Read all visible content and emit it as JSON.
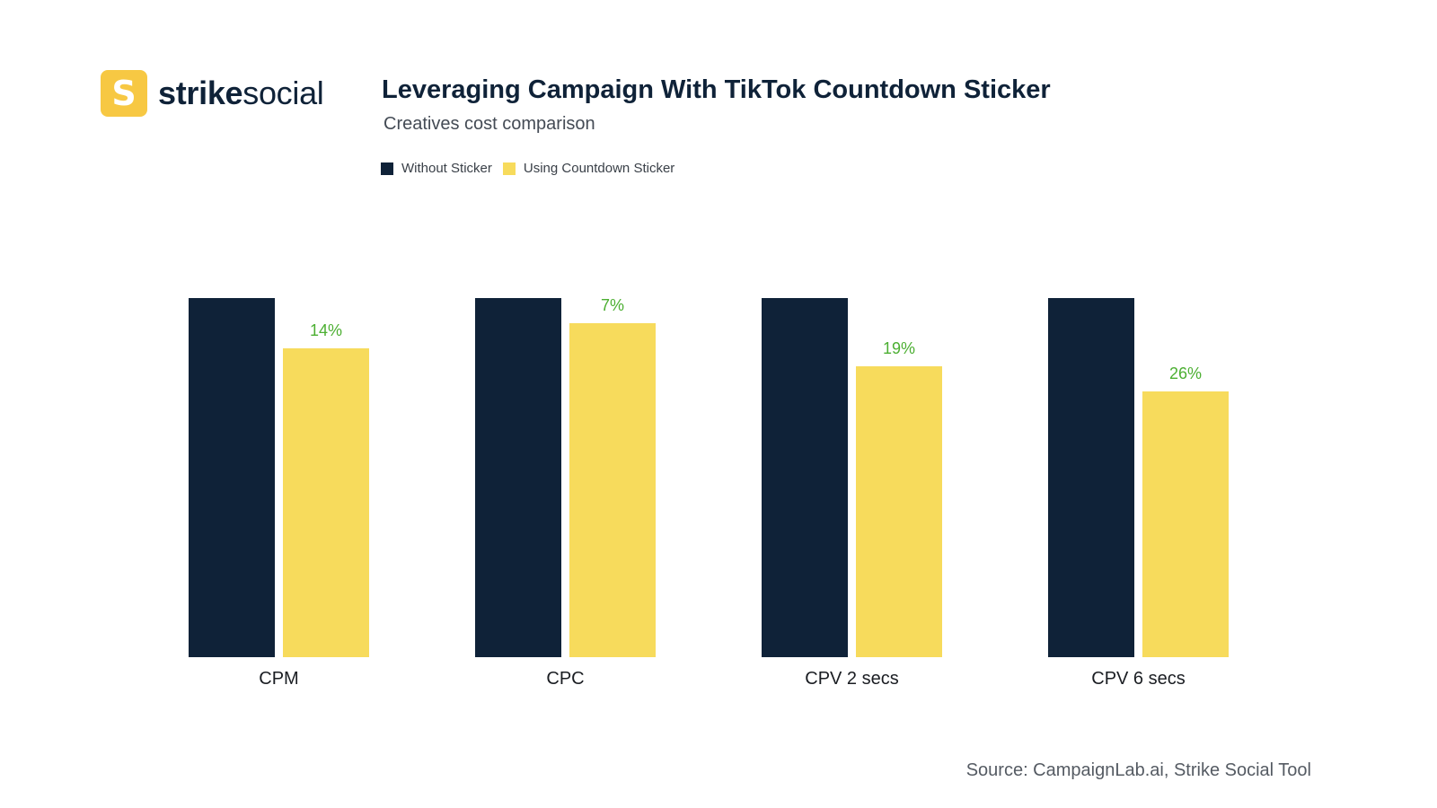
{
  "brand": {
    "badge_glyph": "S",
    "name_bold": "strike",
    "name_light": "social",
    "accent": "#f7c843"
  },
  "colors": {
    "without": "#0f2238",
    "with": "#f7db5c",
    "pct_label": "#4caf32"
  },
  "chart_data": {
    "type": "bar",
    "title": "Leveraging Campaign With TikTok Countdown Sticker",
    "subtitle": "Creatives cost comparison",
    "categories": [
      "CPM",
      "CPC",
      "CPV 2 secs",
      "CPV 6 secs"
    ],
    "series": [
      {
        "name": "Without Sticker",
        "values": [
          100,
          100,
          100,
          100
        ]
      },
      {
        "name": "Using Countdown Sticker",
        "values": [
          86,
          93,
          81,
          74
        ]
      }
    ],
    "data_labels": [
      "14%",
      "7%",
      "19%",
      "26%"
    ],
    "ylim": [
      0,
      100
    ],
    "grid": false,
    "legend": "top-left"
  },
  "source": "Source: CampaignLab.ai, Strike Social Tool"
}
